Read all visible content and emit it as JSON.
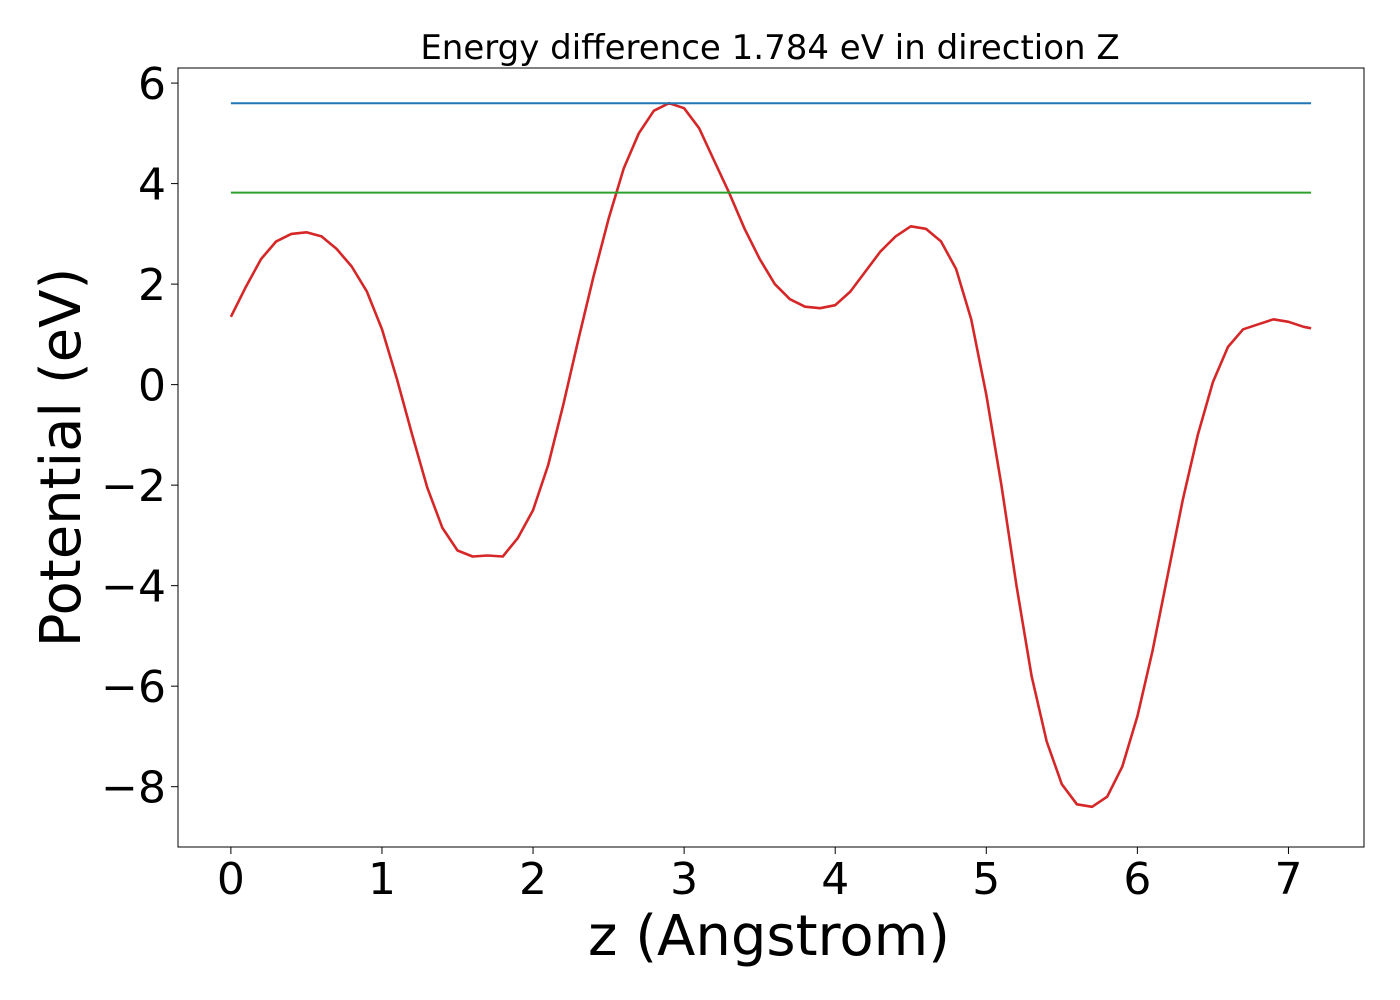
{
  "chart_data": {
    "type": "line",
    "title": "Energy difference 1.784 eV in direction Z",
    "xlabel": "z (Angstrom)",
    "ylabel": "Potential (eV)",
    "xlim": [
      -0.35,
      7.5
    ],
    "ylim": [
      -9.2,
      6.3
    ],
    "xticks": [
      0,
      1,
      2,
      3,
      4,
      5,
      6,
      7
    ],
    "xtick_labels": [
      "0",
      "1",
      "2",
      "3",
      "4",
      "5",
      "6",
      "7"
    ],
    "yticks": [
      -8,
      -6,
      -4,
      -2,
      0,
      2,
      4,
      6
    ],
    "ytick_labels": [
      "−8",
      "−6",
      "−4",
      "−2",
      "0",
      "2",
      "4",
      "6"
    ],
    "grid": false,
    "series": [
      {
        "color": "#d62728",
        "x": [
          0.0,
          0.1,
          0.2,
          0.3,
          0.4,
          0.5,
          0.6,
          0.7,
          0.8,
          0.9,
          1.0,
          1.1,
          1.2,
          1.3,
          1.4,
          1.5,
          1.6,
          1.7,
          1.8,
          1.9,
          2.0,
          2.1,
          2.2,
          2.3,
          2.4,
          2.5,
          2.6,
          2.7,
          2.8,
          2.9,
          3.0,
          3.1,
          3.2,
          3.3,
          3.4,
          3.5,
          3.6,
          3.7,
          3.8,
          3.9,
          4.0,
          4.1,
          4.2,
          4.3,
          4.4,
          4.5,
          4.6,
          4.7,
          4.8,
          4.9,
          5.0,
          5.1,
          5.2,
          5.3,
          5.4,
          5.5,
          5.6,
          5.7,
          5.8,
          5.9,
          6.0,
          6.1,
          6.2,
          6.3,
          6.4,
          6.5,
          6.6,
          6.7,
          6.8,
          6.9,
          7.0,
          7.1,
          7.15
        ],
        "y": [
          1.35,
          1.95,
          2.5,
          2.85,
          3.0,
          3.03,
          2.95,
          2.7,
          2.35,
          1.85,
          1.1,
          0.1,
          -1.0,
          -2.05,
          -2.85,
          -3.3,
          -3.42,
          -3.4,
          -3.42,
          -3.05,
          -2.5,
          -1.6,
          -0.4,
          0.9,
          2.15,
          3.3,
          4.3,
          5.0,
          5.45,
          5.6,
          5.5,
          5.1,
          4.45,
          3.8,
          3.1,
          2.5,
          2.0,
          1.7,
          1.55,
          1.52,
          1.58,
          1.85,
          2.25,
          2.65,
          2.95,
          3.15,
          3.1,
          2.85,
          2.3,
          1.3,
          -0.2,
          -2.0,
          -4.0,
          -5.8,
          -7.1,
          -7.95,
          -8.35,
          -8.4,
          -8.2,
          -7.6,
          -6.6,
          -5.3,
          -3.8,
          -2.3,
          -1.0,
          0.05,
          0.75,
          1.1,
          1.2,
          1.3,
          1.25,
          1.15,
          1.12
        ]
      },
      {
        "color": "#1f77b4",
        "x": [
          0.0,
          7.15
        ],
        "y": [
          5.6,
          5.6
        ]
      },
      {
        "color": "#2ca02c",
        "x": [
          0.0,
          7.15
        ],
        "y": [
          3.82,
          3.82
        ]
      }
    ]
  }
}
